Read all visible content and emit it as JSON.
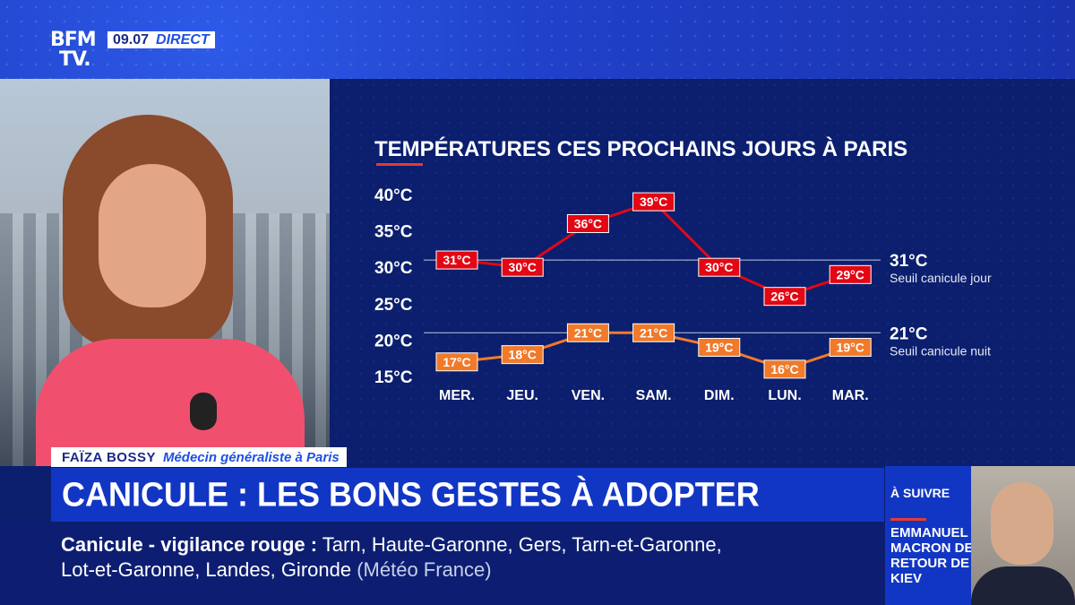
{
  "header": {
    "logo_line1": "BFM",
    "logo_line2": "TV.",
    "time": "09.07",
    "live_label": "DIRECT"
  },
  "chart_data": {
    "type": "line",
    "title": "TEMPÉRATURES CES PROCHAINS JOURS À PARIS",
    "categories": [
      "MER.",
      "JEU.",
      "VEN.",
      "SAM.",
      "DIM.",
      "LUN.",
      "MAR."
    ],
    "yticks": [
      "40°C",
      "35°C",
      "30°C",
      "25°C",
      "20°C",
      "15°C"
    ],
    "ylim": [
      15,
      40
    ],
    "series": [
      {
        "values": [
          31,
          30,
          36,
          39,
          30,
          26,
          29
        ],
        "labels": [
          "31°C",
          "30°C",
          "36°C",
          "39°C",
          "30°C",
          "26°C",
          "29°C"
        ],
        "color": "#e30613"
      },
      {
        "values": [
          17,
          18,
          21,
          21,
          19,
          16,
          19
        ],
        "labels": [
          "17°C",
          "18°C",
          "21°C",
          "21°C",
          "19°C",
          "16°C",
          "19°C"
        ],
        "color": "#f07a2a"
      }
    ],
    "thresholds": [
      {
        "value": 31,
        "label": "31°C",
        "caption": "Seuil canicule jour"
      },
      {
        "value": 21,
        "label": "21°C",
        "caption": "Seuil canicule nuit"
      }
    ]
  },
  "lower_third": {
    "name": "FAÏZA BOSSY",
    "role": "Médecin généraliste à Paris"
  },
  "headline": "CANICULE : LES BONS GESTES À ADOPTER",
  "ticker": {
    "label": "Canicule - vigilance rouge :",
    "line1_rest": "Tarn, Haute-Garonne, Gers, Tarn-et-Garonne,",
    "line2": "Lot-et-Garonne, Landes, Gironde",
    "source": "(Météo France)"
  },
  "up_next": {
    "kicker": "À SUIVRE",
    "title": "EMMANUEL MACRON DE RETOUR DE KIEV"
  }
}
